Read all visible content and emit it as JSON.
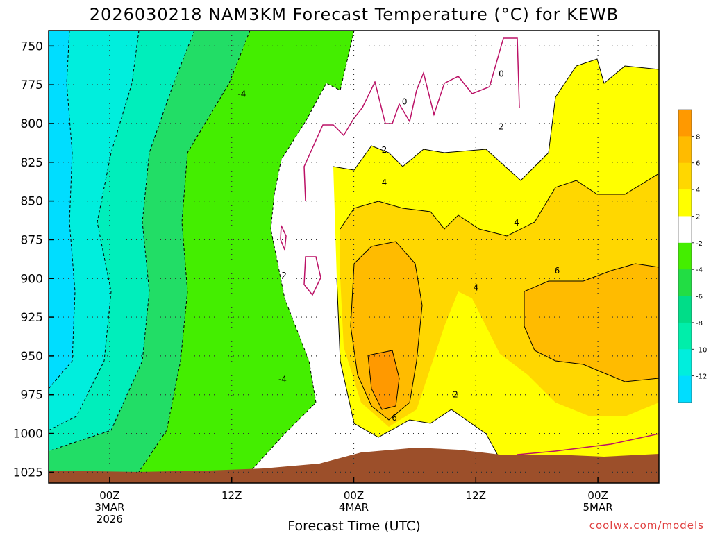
{
  "chart_data": {
    "type": "heatmap",
    "title": "2026030218 NAM3KM Forecast Temperature (°C) for KEWB",
    "xlabel": "Forecast Time (UTC)",
    "ylabel": "",
    "y_ticks": [
      "750",
      "775",
      "800",
      "825",
      "850",
      "875",
      "900",
      "925",
      "950",
      "975",
      "1000",
      "1025"
    ],
    "y_values": [
      750,
      775,
      800,
      825,
      850,
      875,
      900,
      925,
      950,
      975,
      1000,
      1025
    ],
    "ylim": [
      740,
      1032
    ],
    "x_ticks": [
      {
        "hour": 6,
        "lines": [
          "00Z",
          "3MAR",
          "2026"
        ]
      },
      {
        "hour": 18,
        "lines": [
          "12Z"
        ]
      },
      {
        "hour": 30,
        "lines": [
          "00Z",
          "4MAR"
        ]
      },
      {
        "hour": 42,
        "lines": [
          "12Z"
        ]
      },
      {
        "hour": 54,
        "lines": [
          "00Z",
          "5MAR"
        ]
      }
    ],
    "xlim": [
      0,
      60
    ],
    "colorbar": {
      "labels": [
        "8",
        "6",
        "4",
        "2",
        "-2",
        "-4",
        "-6",
        "-8",
        "-10",
        "-12"
      ],
      "colors": [
        "#ff9900",
        "#ffbb00",
        "#ffd700",
        "#ffff00",
        "#ffffff",
        "#44ee00",
        "#22dd44",
        "#00dd88",
        "#00eeaa",
        "#00eedd",
        "#00ddff"
      ]
    },
    "contour_labels": [
      {
        "text": "-4",
        "hour": 19,
        "p": 781
      },
      {
        "text": "0",
        "hour": 35,
        "p": 786
      },
      {
        "text": "0",
        "hour": 44.5,
        "p": 768
      },
      {
        "text": "2",
        "hour": 33,
        "p": 817
      },
      {
        "text": "2",
        "hour": 44.5,
        "p": 802
      },
      {
        "text": "4",
        "hour": 33,
        "p": 838
      },
      {
        "text": "4",
        "hour": 46,
        "p": 864
      },
      {
        "text": "6",
        "hour": 50,
        "p": 895
      },
      {
        "text": "4",
        "hour": 42,
        "p": 906
      },
      {
        "text": "-2",
        "hour": 23,
        "p": 898
      },
      {
        "text": "-4",
        "hour": 23,
        "p": 965
      },
      {
        "text": "6",
        "hour": 34,
        "p": 990
      },
      {
        "text": "2",
        "hour": 40,
        "p": 975
      }
    ],
    "credit": "coolwx.com/models"
  }
}
